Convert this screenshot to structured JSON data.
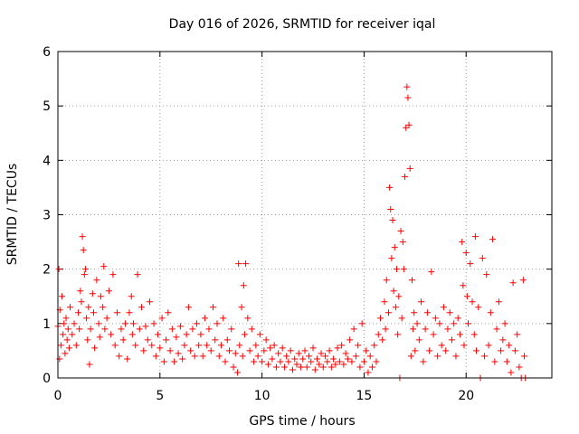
{
  "chart_data": {
    "type": "scatter",
    "title": "Day 016 of 2026, SRMTID for receiver iqal",
    "xlabel": "GPS time / hours",
    "ylabel": "SRMTID / TECUs",
    "xlim": [
      0,
      24.2
    ],
    "ylim": [
      0,
      6
    ],
    "grid": true,
    "marker": "+",
    "color": "#ff0000",
    "x_ticks": [
      0,
      5,
      10,
      15,
      20
    ],
    "x_tick_labels": [
      "0",
      "5",
      "10",
      "15",
      "20"
    ],
    "y_ticks": [
      0,
      1,
      2,
      3,
      4,
      5,
      6
    ],
    "y_tick_labels": [
      "0",
      "1",
      "2",
      "3",
      "4",
      "5",
      "6"
    ],
    "series": [
      {
        "name": "SRMTID",
        "points": [
          [
            0.0,
            0.95
          ],
          [
            0.05,
            2.0
          ],
          [
            0.08,
            0.35
          ],
          [
            0.1,
            1.25
          ],
          [
            0.15,
            0.6
          ],
          [
            0.2,
            1.5
          ],
          [
            0.25,
            0.8
          ],
          [
            0.3,
            1.0
          ],
          [
            0.35,
            0.45
          ],
          [
            0.4,
            1.1
          ],
          [
            0.45,
            0.7
          ],
          [
            0.5,
            0.9
          ],
          [
            0.55,
            0.55
          ],
          [
            0.6,
            1.3
          ],
          [
            0.7,
            0.8
          ],
          [
            0.8,
            1.0
          ],
          [
            0.9,
            0.6
          ],
          [
            1.0,
            1.2
          ],
          [
            1.05,
            0.9
          ],
          [
            1.1,
            1.6
          ],
          [
            1.15,
            1.4
          ],
          [
            1.2,
            2.6
          ],
          [
            1.25,
            2.35
          ],
          [
            1.3,
            1.9
          ],
          [
            1.35,
            2.0
          ],
          [
            1.4,
            1.1
          ],
          [
            1.45,
            0.7
          ],
          [
            1.5,
            1.3
          ],
          [
            1.55,
            0.25
          ],
          [
            1.6,
            0.9
          ],
          [
            1.7,
            1.55
          ],
          [
            1.75,
            1.2
          ],
          [
            1.8,
            0.55
          ],
          [
            1.9,
            1.8
          ],
          [
            2.0,
            1.0
          ],
          [
            2.05,
            0.75
          ],
          [
            2.1,
            1.5
          ],
          [
            2.2,
            1.3
          ],
          [
            2.25,
            2.05
          ],
          [
            2.3,
            0.9
          ],
          [
            2.4,
            1.1
          ],
          [
            2.5,
            1.6
          ],
          [
            2.6,
            0.8
          ],
          [
            2.7,
            1.9
          ],
          [
            2.8,
            0.6
          ],
          [
            2.9,
            1.2
          ],
          [
            3.0,
            0.4
          ],
          [
            3.1,
            0.9
          ],
          [
            3.2,
            0.7
          ],
          [
            3.3,
            1.0
          ],
          [
            3.4,
            0.35
          ],
          [
            3.5,
            1.2
          ],
          [
            3.6,
            1.5
          ],
          [
            3.65,
            0.8
          ],
          [
            3.7,
            1.0
          ],
          [
            3.8,
            0.6
          ],
          [
            3.9,
            1.9
          ],
          [
            4.0,
            0.9
          ],
          [
            4.1,
            1.3
          ],
          [
            4.2,
            0.5
          ],
          [
            4.3,
            0.95
          ],
          [
            4.4,
            0.7
          ],
          [
            4.5,
            1.4
          ],
          [
            4.6,
            0.6
          ],
          [
            4.7,
            1.0
          ],
          [
            4.8,
            0.4
          ],
          [
            4.9,
            0.8
          ],
          [
            5.0,
            0.55
          ],
          [
            5.1,
            1.1
          ],
          [
            5.2,
            0.3
          ],
          [
            5.3,
            0.7
          ],
          [
            5.4,
            1.2
          ],
          [
            5.5,
            0.5
          ],
          [
            5.6,
            0.9
          ],
          [
            5.7,
            0.3
          ],
          [
            5.8,
            0.75
          ],
          [
            5.9,
            0.45
          ],
          [
            6.0,
            0.95
          ],
          [
            6.1,
            0.35
          ],
          [
            6.2,
            0.6
          ],
          [
            6.3,
            0.8
          ],
          [
            6.4,
            1.3
          ],
          [
            6.5,
            0.5
          ],
          [
            6.6,
            0.9
          ],
          [
            6.7,
            0.4
          ],
          [
            6.8,
            1.0
          ],
          [
            6.9,
            0.6
          ],
          [
            7.0,
            0.8
          ],
          [
            7.1,
            0.4
          ],
          [
            7.2,
            1.1
          ],
          [
            7.3,
            0.6
          ],
          [
            7.4,
            0.9
          ],
          [
            7.5,
            0.5
          ],
          [
            7.6,
            1.3
          ],
          [
            7.7,
            0.7
          ],
          [
            7.8,
            1.0
          ],
          [
            7.9,
            0.4
          ],
          [
            8.0,
            0.6
          ],
          [
            8.1,
            1.1
          ],
          [
            8.2,
            0.3
          ],
          [
            8.3,
            0.7
          ],
          [
            8.4,
            0.5
          ],
          [
            8.5,
            0.9
          ],
          [
            8.6,
            0.2
          ],
          [
            8.7,
            0.45
          ],
          [
            8.8,
            0.1
          ],
          [
            8.85,
            2.1
          ],
          [
            8.9,
            0.6
          ],
          [
            9.0,
            1.3
          ],
          [
            9.05,
            0.4
          ],
          [
            9.1,
            1.7
          ],
          [
            9.15,
            0.8
          ],
          [
            9.2,
            2.1
          ],
          [
            9.3,
            1.1
          ],
          [
            9.4,
            0.5
          ],
          [
            9.5,
            0.9
          ],
          [
            9.6,
            0.3
          ],
          [
            9.7,
            0.6
          ],
          [
            9.8,
            0.4
          ],
          [
            9.9,
            0.8
          ],
          [
            10.0,
            0.3
          ],
          [
            10.1,
            0.5
          ],
          [
            10.2,
            0.7
          ],
          [
            10.3,
            0.25
          ],
          [
            10.4,
            0.55
          ],
          [
            10.5,
            0.35
          ],
          [
            10.6,
            0.6
          ],
          [
            10.7,
            0.2
          ],
          [
            10.8,
            0.45
          ],
          [
            10.9,
            0.3
          ],
          [
            11.0,
            0.55
          ],
          [
            11.1,
            0.2
          ],
          [
            11.2,
            0.4
          ],
          [
            11.3,
            0.3
          ],
          [
            11.4,
            0.5
          ],
          [
            11.5,
            0.15
          ],
          [
            11.6,
            0.35
          ],
          [
            11.7,
            0.25
          ],
          [
            11.8,
            0.45
          ],
          [
            11.9,
            0.2
          ],
          [
            12.0,
            0.35
          ],
          [
            12.1,
            0.5
          ],
          [
            12.2,
            0.2
          ],
          [
            12.3,
            0.4
          ],
          [
            12.4,
            0.3
          ],
          [
            12.5,
            0.55
          ],
          [
            12.6,
            0.15
          ],
          [
            12.7,
            0.35
          ],
          [
            12.8,
            0.25
          ],
          [
            12.9,
            0.45
          ],
          [
            13.0,
            0.2
          ],
          [
            13.1,
            0.4
          ],
          [
            13.2,
            0.3
          ],
          [
            13.3,
            0.5
          ],
          [
            13.4,
            0.2
          ],
          [
            13.5,
            0.35
          ],
          [
            13.6,
            0.25
          ],
          [
            13.7,
            0.55
          ],
          [
            13.8,
            0.3
          ],
          [
            13.9,
            0.6
          ],
          [
            14.0,
            0.25
          ],
          [
            14.1,
            0.45
          ],
          [
            14.2,
            0.35
          ],
          [
            14.3,
            0.7
          ],
          [
            14.4,
            0.3
          ],
          [
            14.5,
            0.9
          ],
          [
            14.6,
            0.4
          ],
          [
            14.7,
            0.6
          ],
          [
            14.8,
            0.2
          ],
          [
            14.9,
            1.0
          ],
          [
            15.0,
            0.3
          ],
          [
            15.1,
            0.5
          ],
          [
            15.2,
            0.1
          ],
          [
            15.3,
            0.4
          ],
          [
            15.4,
            0.2
          ],
          [
            15.5,
            0.6
          ],
          [
            15.6,
            0.3
          ],
          [
            15.7,
            0.8
          ],
          [
            15.8,
            1.1
          ],
          [
            15.9,
            0.7
          ],
          [
            16.0,
            1.4
          ],
          [
            16.05,
            0.9
          ],
          [
            16.1,
            1.8
          ],
          [
            16.2,
            1.2
          ],
          [
            16.25,
            3.5
          ],
          [
            16.3,
            3.1
          ],
          [
            16.35,
            2.2
          ],
          [
            16.4,
            2.9
          ],
          [
            16.45,
            1.6
          ],
          [
            16.5,
            2.4
          ],
          [
            16.55,
            1.3
          ],
          [
            16.6,
            2.0
          ],
          [
            16.65,
            0.8
          ],
          [
            16.7,
            1.5
          ],
          [
            16.75,
            0.0
          ],
          [
            16.8,
            2.7
          ],
          [
            16.85,
            1.1
          ],
          [
            16.9,
            2.5
          ],
          [
            16.95,
            2.0
          ],
          [
            17.0,
            3.7
          ],
          [
            17.05,
            4.6
          ],
          [
            17.1,
            5.35
          ],
          [
            17.15,
            5.15
          ],
          [
            17.2,
            4.65
          ],
          [
            17.25,
            3.85
          ],
          [
            17.3,
            0.4
          ],
          [
            17.35,
            1.8
          ],
          [
            17.4,
            0.9
          ],
          [
            17.45,
            1.2
          ],
          [
            17.5,
            0.5
          ],
          [
            17.6,
            1.0
          ],
          [
            17.7,
            0.7
          ],
          [
            17.8,
            1.4
          ],
          [
            17.9,
            0.3
          ],
          [
            18.0,
            0.9
          ],
          [
            18.1,
            1.2
          ],
          [
            18.2,
            0.5
          ],
          [
            18.3,
            1.95
          ],
          [
            18.4,
            0.8
          ],
          [
            18.5,
            1.1
          ],
          [
            18.6,
            0.4
          ],
          [
            18.7,
            1.0
          ],
          [
            18.8,
            0.6
          ],
          [
            18.9,
            1.3
          ],
          [
            19.0,
            0.5
          ],
          [
            19.1,
            0.9
          ],
          [
            19.2,
            1.2
          ],
          [
            19.3,
            0.7
          ],
          [
            19.4,
            1.0
          ],
          [
            19.5,
            0.4
          ],
          [
            19.6,
            1.1
          ],
          [
            19.7,
            0.8
          ],
          [
            19.8,
            2.5
          ],
          [
            19.85,
            1.7
          ],
          [
            19.9,
            0.6
          ],
          [
            20.0,
            2.3
          ],
          [
            20.05,
            1.5
          ],
          [
            20.1,
            1.0
          ],
          [
            20.2,
            2.1
          ],
          [
            20.3,
            1.4
          ],
          [
            20.4,
            0.8
          ],
          [
            20.45,
            2.6
          ],
          [
            20.5,
            0.5
          ],
          [
            20.6,
            1.3
          ],
          [
            20.7,
            0.0
          ],
          [
            20.8,
            2.2
          ],
          [
            20.9,
            0.4
          ],
          [
            21.0,
            1.9
          ],
          [
            21.1,
            0.6
          ],
          [
            21.2,
            1.2
          ],
          [
            21.3,
            2.55
          ],
          [
            21.4,
            0.3
          ],
          [
            21.5,
            0.9
          ],
          [
            21.6,
            1.4
          ],
          [
            21.7,
            0.5
          ],
          [
            21.8,
            0.7
          ],
          [
            21.9,
            1.0
          ],
          [
            22.0,
            0.3
          ],
          [
            22.1,
            0.6
          ],
          [
            22.2,
            0.1
          ],
          [
            22.3,
            1.75
          ],
          [
            22.4,
            0.5
          ],
          [
            22.5,
            0.8
          ],
          [
            22.6,
            0.2
          ],
          [
            22.7,
            0.0
          ],
          [
            22.8,
            1.8
          ],
          [
            22.85,
            0.4
          ],
          [
            22.9,
            0.0
          ]
        ]
      }
    ]
  }
}
